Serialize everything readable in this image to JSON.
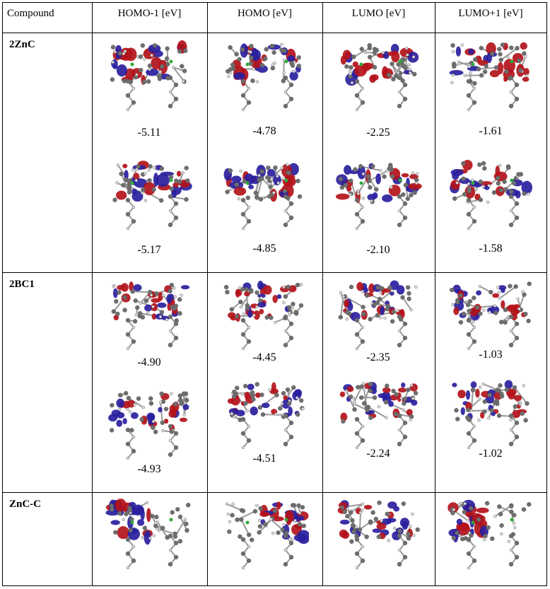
{
  "header": {
    "compound": "Compound",
    "columns": [
      "HOMO-1 [eV]",
      "HOMO [eV]",
      "LUMO [eV]",
      "LUMO+1 [eV]"
    ]
  },
  "rows": [
    {
      "compound": "2ZnC",
      "values": [
        [
          "-5.11",
          "-4.78",
          "-2.25",
          "-1.61"
        ],
        [
          "-5.17",
          "-4.85",
          "-2.10",
          "-1.58"
        ]
      ]
    },
    {
      "compound": "2BC1",
      "values": [
        [
          "-4.90",
          "-4.45",
          "-2.35",
          "-1.03"
        ],
        [
          "-4.93",
          "-4.51",
          "-2.24",
          "-1.02"
        ]
      ]
    },
    {
      "compound": "ZnC-C",
      "values": []
    }
  ],
  "colors": {
    "lobe_red": "#b3121a",
    "lobe_blue": "#2a1f9e",
    "atom_gray": "#6e6e6e",
    "zn_green": "#2faa3a"
  }
}
